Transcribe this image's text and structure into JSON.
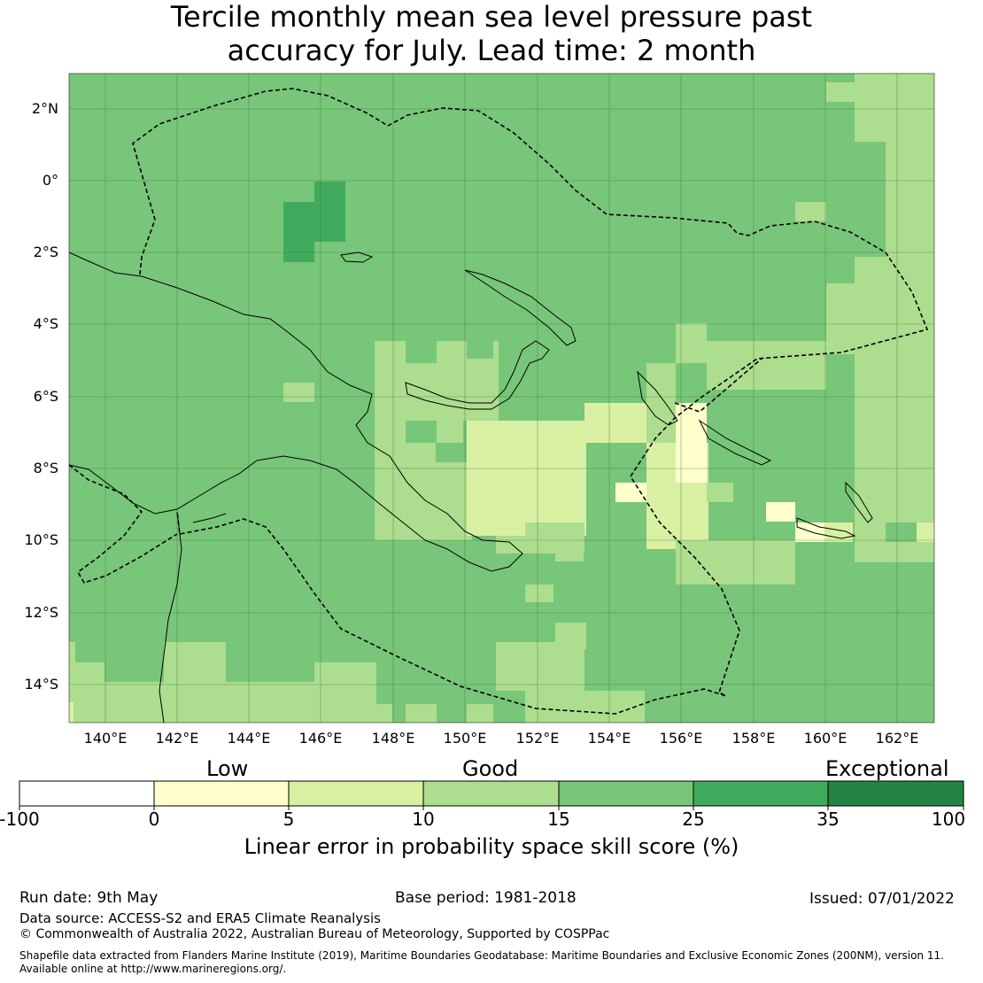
{
  "title_line1": "Tercile monthly mean sea level pressure past",
  "title_line2": "accuracy for July. Lead time: 2 month",
  "map": {
    "lat_labels": [
      "2°N",
      "0°",
      "2°S",
      "4°S",
      "6°S",
      "8°S",
      "10°S",
      "12°S",
      "14°S"
    ],
    "lon_labels": [
      "140°E",
      "142°E",
      "144°E",
      "146°E",
      "148°E",
      "150°E",
      "152°E",
      "154°E",
      "156°E",
      "158°E",
      "160°E",
      "162°E"
    ]
  },
  "legend": {
    "categories": [
      "Low",
      "Good",
      "Exceptional"
    ],
    "ticks": [
      "-100",
      "0",
      "5",
      "10",
      "15",
      "25",
      "35",
      "100"
    ],
    "colors": [
      "#ffffff",
      "#ffffcc",
      "#d9f0a3",
      "#addd8e",
      "#78c679",
      "#41ab5d",
      "#238443"
    ],
    "title": "Linear error in probability space skill score (%)"
  },
  "footer": {
    "run_date": "Run date: 9th May",
    "base_period": "Base period: 1981-2018",
    "issued": "Issued: 07/01/2022",
    "data_source": "Data source: ACCESS-S2 and ERA5 Climate Reanalysis",
    "copyright": "© Commonwealth of Australia 2022, Australian Bureau of Meteorology, Supported by COSPPac",
    "shapefile_line1": "Shapefile data extracted from Flanders Marine Institute (2019), Maritime Boundaries Geodatabase: Maritime Boundaries and Exclusive Economic Zones (200NM), version 11.",
    "shapefile_line2": "Available online at http://www.marineregions.org/."
  }
}
